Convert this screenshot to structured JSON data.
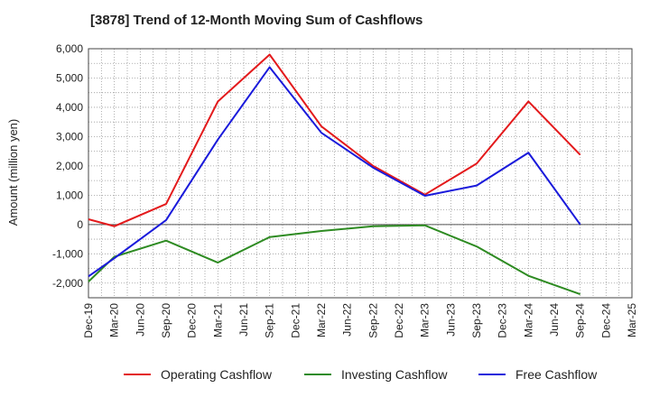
{
  "chart_data": {
    "type": "line",
    "title": "[3878]  Trend of 12-Month Moving Sum of Cashflows",
    "xlabel": "",
    "ylabel": "Amount (million yen)",
    "ylim": [
      -2500,
      6000
    ],
    "yticks": [
      6000,
      5000,
      4000,
      3000,
      2000,
      1000,
      0,
      -1000,
      -2000
    ],
    "ytick_labels": [
      "6,000",
      "5,000",
      "4,000",
      "3,000",
      "2,000",
      "1,000",
      "0",
      "-1,000",
      "-2,000"
    ],
    "categories": [
      "Dec-19",
      "Mar-20",
      "Jun-20",
      "Sep-20",
      "Dec-20",
      "Mar-21",
      "Jun-21",
      "Sep-21",
      "Dec-21",
      "Mar-22",
      "Jun-22",
      "Sep-22",
      "Dec-22",
      "Mar-23",
      "Jun-23",
      "Sep-23",
      "Dec-23",
      "Mar-24",
      "Jun-24",
      "Sep-24",
      "Dec-24",
      "Mar-25"
    ],
    "grid": true,
    "legend_position": "bottom",
    "series": [
      {
        "name": "Operating Cashflow",
        "color": "#e31a1c",
        "values": [
          180,
          -60,
          null,
          700,
          null,
          4200,
          null,
          5800,
          null,
          3350,
          null,
          2000,
          null,
          1020,
          null,
          2080,
          null,
          4200,
          null,
          2380,
          null,
          null
        ]
      },
      {
        "name": "Investing Cashflow",
        "color": "#2e8b22",
        "values": [
          -1950,
          -1100,
          null,
          -550,
          null,
          -1300,
          null,
          -430,
          null,
          -220,
          null,
          -60,
          null,
          -30,
          null,
          -750,
          null,
          -1750,
          null,
          -2380,
          null,
          null
        ]
      },
      {
        "name": "Free Cashflow",
        "color": "#1a1adb",
        "values": [
          -1770,
          -1150,
          null,
          150,
          null,
          2900,
          null,
          5370,
          null,
          3130,
          null,
          1940,
          null,
          980,
          null,
          1330,
          null,
          2450,
          null,
          0,
          null,
          null
        ]
      }
    ]
  }
}
